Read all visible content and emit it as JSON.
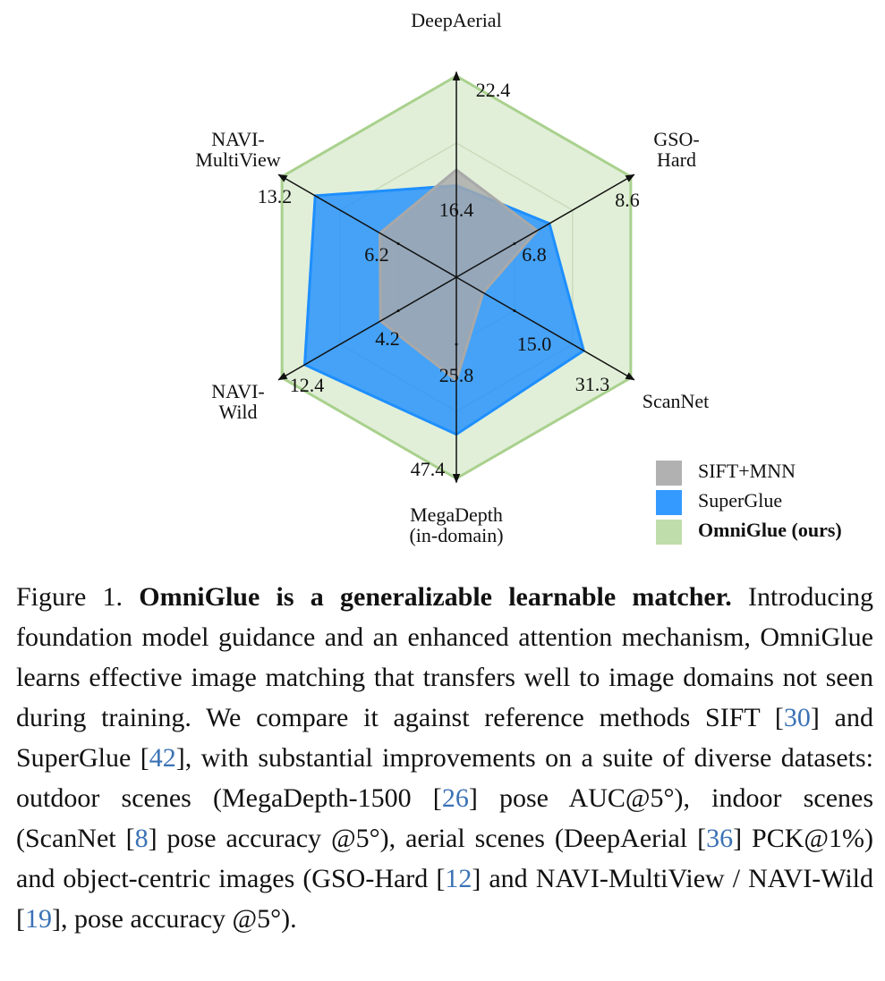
{
  "chart_data": {
    "type": "radar",
    "axes": [
      {
        "name": [
          "DeepAerial"
        ],
        "lim": [
          13.4,
          22.4
        ],
        "ticks": [
          16.4,
          22.4
        ]
      },
      {
        "name": [
          "GSO-",
          "Hard"
        ],
        "lim": [
          5.9,
          8.6
        ],
        "ticks": [
          6.8,
          8.6
        ]
      },
      {
        "name": [
          "ScanNet"
        ],
        "lim": [
          6.85,
          31.3
        ],
        "ticks": [
          {
            "value": 15,
            "label": "15.0"
          },
          31.3
        ]
      },
      {
        "name": [
          "MegaDepth",
          "(in-domain)"
        ],
        "lim": [
          15,
          47.4
        ],
        "ticks": [
          25.8,
          47.4
        ]
      },
      {
        "name": [
          "NAVI-",
          "Wild"
        ],
        "lim": [
          0.1,
          12.4
        ],
        "ticks": [
          4.2,
          12.4
        ]
      },
      {
        "name": [
          "NAVI-",
          "MultiView"
        ],
        "lim": [
          2.7,
          13.2
        ],
        "ticks": [
          6.2,
          13.2
        ]
      }
    ],
    "series": [
      {
        "name": "SIFT+MNN",
        "color": "#a9a9a9",
        "values": [
          18.2,
          7.15,
          10.6,
          31.6,
          5.45,
          7.3
        ]
      },
      {
        "name": "SuperGlue",
        "color": "#1e8fff",
        "values": [
          17.5,
          7.34,
          24.7,
          40.3,
          10.8,
          11.2
        ]
      },
      {
        "name": "OmniGlue (ours)",
        "color": "#a9d18e",
        "values": [
          22.4,
          8.6,
          31.3,
          47.4,
          12.4,
          13.2
        ]
      }
    ],
    "grid": true
  },
  "caption": {
    "label": "Figure 1.",
    "title": "OmniGlue is a generalizable learnable matcher.",
    "body": [
      "Introducing foundation model guidance and an enhanced attention mechanism, OmniGlue learns effective image matching that transfers well to image domains not seen during training. We compare it against reference methods SIFT [",
      "30",
      "] and SuperGlue [",
      "42",
      "], with substantial improvements on a suite of diverse datasets: outdoor scenes (MegaDepth-1500 [",
      "26",
      "] pose AUC@5°), indoor scenes (ScanNet [",
      "8",
      "] pose accuracy @5°), aerial scenes (DeepAerial [",
      "36",
      "] PCK@1%) and object-centric images (GSO-Hard [",
      "12",
      "] and NAVI-MultiView / NAVI-Wild [",
      "19",
      "], pose accuracy @5°)."
    ]
  }
}
